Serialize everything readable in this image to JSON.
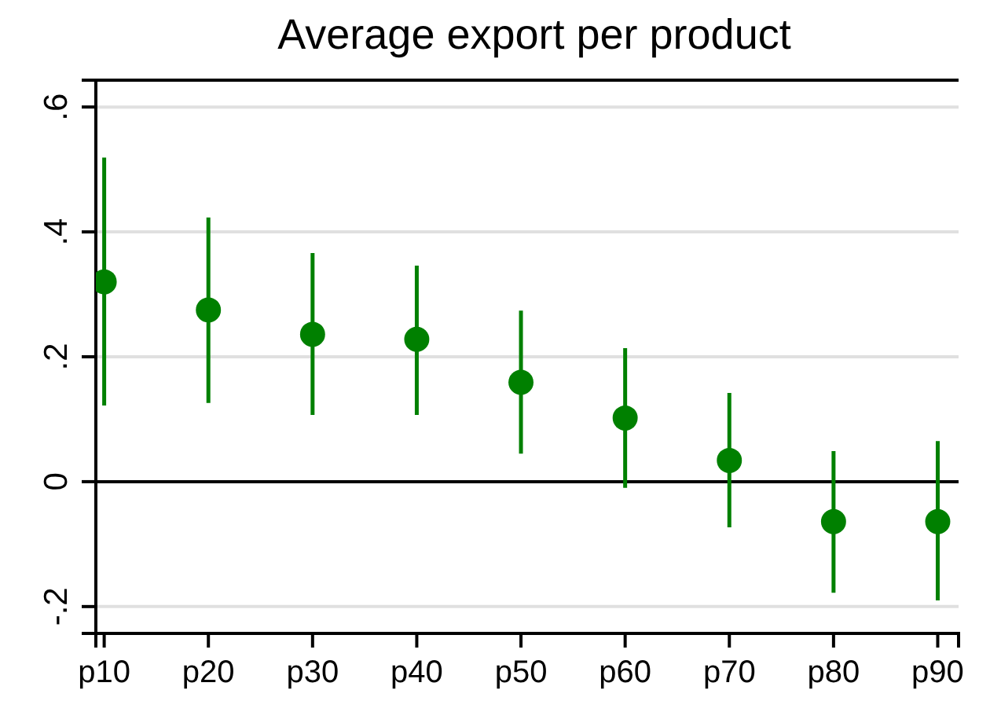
{
  "chart_data": {
    "type": "scatter",
    "title": "Average export per product",
    "categories": [
      "p10",
      "p20",
      "p30",
      "p40",
      "p50",
      "p60",
      "p70",
      "p80",
      "p90"
    ],
    "series": [
      {
        "color": "#008000",
        "values": [
          0.32,
          0.275,
          0.236,
          0.228,
          0.159,
          0.102,
          0.034,
          -0.064,
          -0.064
        ],
        "errors": [
          [
            0.122,
            0.519
          ],
          [
            0.126,
            0.423
          ],
          [
            0.107,
            0.366
          ],
          [
            0.107,
            0.346
          ],
          [
            0.045,
            0.274
          ],
          [
            -0.01,
            0.214
          ],
          [
            -0.073,
            0.142
          ],
          [
            -0.178,
            0.049
          ],
          [
            -0.19,
            0.065
          ]
        ]
      }
    ],
    "ylim": [
      -0.243,
      0.643
    ],
    "yticks": [
      {
        "value": -0.2,
        "label": "-.2"
      },
      {
        "value": 0,
        "label": "0"
      },
      {
        "value": 0.2,
        "label": ".2"
      },
      {
        "value": 0.4,
        "label": ".4"
      },
      {
        "value": 0.6,
        "label": ".6"
      }
    ],
    "grid": "y",
    "marker": "circle",
    "ref_lines": [
      {
        "axis": "y",
        "value": 0,
        "color": "#000000"
      }
    ]
  }
}
